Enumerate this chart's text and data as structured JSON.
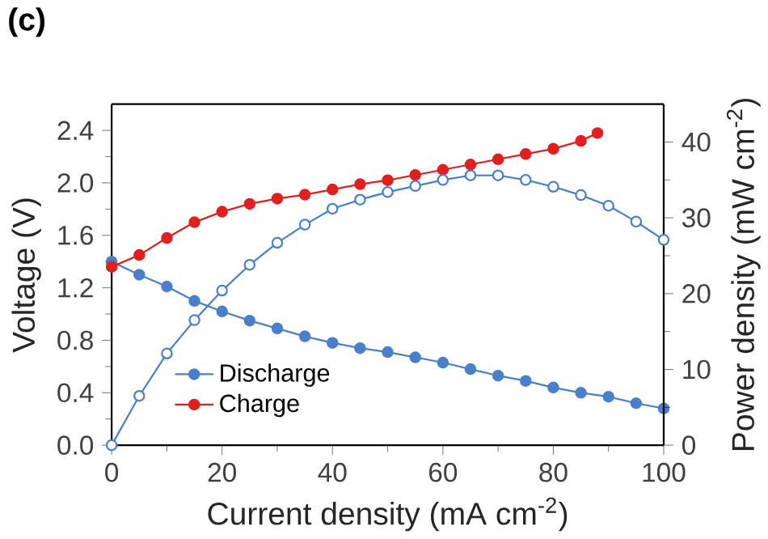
{
  "chart_data": {
    "type": "line",
    "title": "(c)",
    "xlabel": "Current density (mA cm$^{-2}$)",
    "ylabel": "Voltage (V)",
    "y2label": "Power density (mW cm$^{-2}$)",
    "xlim": [
      0,
      100
    ],
    "xticks": [
      0,
      20,
      40,
      60,
      80,
      100
    ],
    "ylim": [
      0,
      2.6
    ],
    "yticks": [
      {
        "value": 0,
        "label": "0.0"
      },
      {
        "value": 0.4,
        "label": "0.4"
      },
      {
        "value": 0.8,
        "label": "0.8"
      },
      {
        "value": 1.2,
        "label": "1.2"
      },
      {
        "value": 1.6,
        "label": "1.6"
      },
      {
        "value": 2.0,
        "label": "2.0"
      },
      {
        "value": 2.4,
        "label": "2.4"
      }
    ],
    "y2lim": [
      0,
      45
    ],
    "y2ticks": [
      0,
      10,
      20,
      30,
      40
    ],
    "marker": "circle",
    "legend": "bottom left",
    "grid": false,
    "series": [
      {
        "name": "Discharge",
        "color": "#4a7fc9",
        "x": [
          0,
          5,
          10,
          15,
          20,
          25,
          30,
          35,
          40,
          45,
          50,
          55,
          60,
          65,
          70,
          75,
          80,
          85,
          90,
          95,
          100
        ],
        "values": [
          1.4,
          1.3,
          1.21,
          1.1,
          1.02,
          0.95,
          0.89,
          0.83,
          0.78,
          0.74,
          0.71,
          0.67,
          0.63,
          0.58,
          0.53,
          0.49,
          0.44,
          0.4,
          0.37,
          0.32,
          0.28
        ]
      },
      {
        "name": "Charge",
        "color": "#e02020",
        "x": [
          0,
          5,
          10,
          15,
          20,
          25,
          30,
          35,
          40,
          45,
          50,
          55,
          60,
          65,
          70,
          75,
          80,
          85,
          88
        ],
        "values": [
          1.36,
          1.45,
          1.58,
          1.7,
          1.78,
          1.84,
          1.88,
          1.91,
          1.95,
          1.99,
          2.02,
          2.06,
          2.1,
          2.14,
          2.18,
          2.22,
          2.26,
          2.32,
          2.38
        ]
      },
      {
        "color": "#4a7fc9",
        "axis": "y2",
        "x": [
          0,
          5,
          10,
          15,
          20,
          25,
          30,
          35,
          40,
          45,
          50,
          55,
          60,
          65,
          70,
          75,
          80,
          85,
          90,
          95,
          100
        ],
        "values": [
          0,
          6.5,
          12.1,
          16.5,
          20.4,
          23.8,
          26.7,
          29.1,
          31.2,
          32.4,
          33.4,
          34.2,
          35.0,
          35.6,
          35.6,
          35.0,
          34.1,
          33.0,
          31.6,
          29.5,
          27.1
        ]
      }
    ]
  }
}
